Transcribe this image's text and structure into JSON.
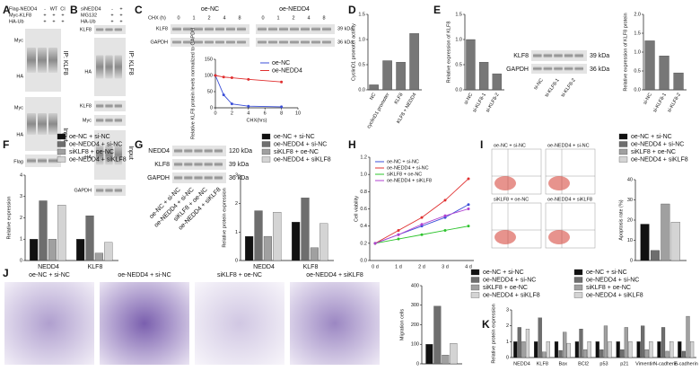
{
  "figure": {
    "A": {
      "letter": "A",
      "conditions": [
        [
          "Flag-NEDD4",
          "-",
          "WT",
          "CI"
        ],
        [
          "Myc-KLF8",
          "+",
          "+",
          "+"
        ],
        [
          "HA-Ub",
          "+",
          "+",
          "+"
        ]
      ],
      "blots": [
        "Myc",
        "HA",
        "Myc",
        "HA",
        "Flag"
      ],
      "sections": [
        "IP: KLF8",
        "Input"
      ]
    },
    "B": {
      "letter": "B",
      "conditions": [
        [
          "siNEDD4",
          "-",
          "+"
        ],
        [
          "MG132",
          "+",
          "+"
        ],
        [
          "HA-Ub",
          "+",
          "+"
        ]
      ],
      "blots": [
        "KLF8",
        "HA",
        "KLF8",
        "Myc",
        "HA",
        "GAPDH"
      ],
      "sections": [
        "IP: KLF8",
        "Input"
      ]
    },
    "C": {
      "letter": "C",
      "groups": [
        "oe-NC",
        "oe-NEDD4"
      ],
      "chx_label": "CHX (h)",
      "chx_times": [
        "0",
        "1",
        "2",
        "4",
        "8",
        "0",
        "1",
        "2",
        "4",
        "8"
      ],
      "blots": [
        "KLF8",
        "GAPDH"
      ],
      "sizes": [
        "39 kDa",
        "36 kDa"
      ]
    },
    "D": {
      "letter": "D"
    },
    "E": {
      "letter": "E",
      "blots": [
        "KLF8",
        "GAPDH"
      ],
      "sizes": [
        "39 kDa",
        "36 kDa"
      ],
      "lanes": [
        "si-NC",
        "si-KLF8-1",
        "si-KLF8-2"
      ]
    },
    "F": {
      "letter": "F"
    },
    "G": {
      "letter": "G",
      "blots": [
        "NEDD4",
        "KLF8",
        "GAPDH"
      ],
      "sizes": [
        "120 kDa",
        "39 kDa",
        "36 kDa"
      ],
      "lanes": [
        "oe-NC + si-NC",
        "oe-NEDD4 + si-NC",
        "siKLF8 + oe-NC",
        "oe-NEDD4 + siKLF8"
      ]
    },
    "H": {
      "letter": "H"
    },
    "I": {
      "letter": "I",
      "plots": [
        "oe-NC + si-NC",
        "oe-NEDD4 + si-NC",
        "siKLF8 + oe-NC",
        "oe-NEDD4 + siKLF8"
      ]
    },
    "J": {
      "letter": "J",
      "images": [
        "oe-NC + si-NC",
        "oe-NEDD4 + si-NC",
        "siKLF8 + oe-NC",
        "oe-NEDD4 + siKLF8"
      ]
    },
    "K": {
      "letter": "K"
    }
  },
  "chart_data": [
    {
      "type": "line",
      "ylabel": "Relative KLF8 protein levels normalized to GAPDH",
      "xlabel": "CHX(hrs)",
      "x": [
        0,
        1,
        2,
        4,
        8
      ],
      "xlim": [
        0,
        10
      ],
      "xticks": [
        0,
        2,
        4,
        6,
        8,
        10
      ],
      "ylim": [
        0,
        150
      ],
      "yticks": [
        0,
        50,
        100,
        150
      ],
      "series": [
        {
          "name": "oe-NC",
          "color": "#3b4fd8",
          "values": [
            100,
            40,
            12,
            5,
            3
          ]
        },
        {
          "name": "oe-NEDD4",
          "color": "#e03030",
          "values": [
            100,
            95,
            93,
            88,
            80
          ]
        }
      ]
    },
    {
      "type": "bar",
      "ylabel": "CyclinD1 promoter activity",
      "categories": [
        "NC",
        "cyclinD1 promoter",
        "KLF8",
        "KLF8 + NEDD4"
      ],
      "values": [
        0.1,
        0.58,
        0.55,
        1.12
      ],
      "color": "#777777",
      "ylim": [
        0,
        1.5
      ],
      "yticks": [
        {
          "value": 0,
          "label": "0.0"
        },
        0.5,
        {
          "value": 1,
          "label": "1.0"
        },
        1.5
      ]
    },
    {
      "type": "bar",
      "ylabel": "Relative expression of KLF8",
      "categories": [
        "si-NC",
        "si-KLF8-1",
        "si-KLF8-2"
      ],
      "values": [
        1.0,
        0.55,
        0.32
      ],
      "color": "#777777",
      "ylim": [
        0,
        1.5
      ],
      "yticks": [
        {
          "value": 0,
          "label": "0.0"
        },
        0.5,
        {
          "value": 1,
          "label": "1.0"
        },
        1.5
      ]
    },
    {
      "type": "bar",
      "ylabel": "Relative expression of KLF8 protein",
      "categories": [
        "si-NC",
        "si-KLF8-1",
        "si-KLF8-2"
      ],
      "values": [
        1.3,
        0.9,
        0.45
      ],
      "color": "#777777",
      "ylim": [
        0,
        2
      ],
      "yticks": [
        {
          "value": 0,
          "label": "0.0"
        },
        0.5,
        {
          "value": 1,
          "label": "1.0"
        },
        1.5,
        {
          "value": 2,
          "label": "2.0"
        }
      ]
    },
    {
      "type": "bar",
      "ylabel": "Relative expression",
      "categories": [
        "NEDD4",
        "KLF8"
      ],
      "ylim": [
        0,
        4
      ],
      "yticks": [
        0,
        1,
        2,
        3,
        4
      ],
      "series": [
        {
          "name": "oe-NC + si-NC",
          "color": "#111111",
          "values": [
            1.0,
            1.0
          ]
        },
        {
          "name": "oe-NEDD4 + si-NC",
          "color": "#6e6e6e",
          "values": [
            2.8,
            2.1
          ]
        },
        {
          "name": "siKLF8 + oe-NC",
          "color": "#a0a0a0",
          "values": [
            1.0,
            0.35
          ]
        },
        {
          "name": "oe-NEDD4 + siKLF8",
          "color": "#d4d4d4",
          "values": [
            2.6,
            0.85
          ]
        }
      ]
    },
    {
      "type": "bar",
      "ylabel": "Relative protein expression",
      "categories": [
        "NEDD4",
        "KLF8"
      ],
      "ylim": [
        0,
        3
      ],
      "yticks": [
        0,
        1,
        2,
        3
      ],
      "series": [
        {
          "name": "oe-NC + si-NC",
          "color": "#111111",
          "values": [
            0.85,
            1.35
          ]
        },
        {
          "name": "oe-NEDD4 + si-NC",
          "color": "#6e6e6e",
          "values": [
            1.75,
            2.2
          ]
        },
        {
          "name": "siKLF8 + oe-NC",
          "color": "#a0a0a0",
          "values": [
            0.85,
            0.45
          ]
        },
        {
          "name": "oe-NEDD4 + siKLF8",
          "color": "#d4d4d4",
          "values": [
            1.7,
            1.3
          ]
        }
      ]
    },
    {
      "type": "line",
      "ylabel": "Cell viability",
      "categories": [
        "0 d",
        "1 d",
        "2 d",
        "3 d",
        "4 d"
      ],
      "ylim": [
        0,
        1.2
      ],
      "yticks": [
        {
          "value": 0,
          "label": "0.0"
        },
        0.2,
        0.4,
        0.6,
        0.8,
        {
          "value": 1,
          "label": "1.0"
        },
        1.2
      ],
      "series": [
        {
          "name": "oe-NC + si-NC",
          "color": "#3b4fd8",
          "values": [
            0.2,
            0.3,
            0.4,
            0.5,
            0.65
          ]
        },
        {
          "name": "oe-NEDD4 + si-NC",
          "color": "#e03030",
          "values": [
            0.2,
            0.35,
            0.5,
            0.7,
            0.95
          ]
        },
        {
          "name": "siKLF8 + oe-NC",
          "color": "#2ec42e",
          "values": [
            0.2,
            0.25,
            0.3,
            0.35,
            0.4
          ]
        },
        {
          "name": "oe-NEDD4 + siKLF8",
          "color": "#b040d0",
          "values": [
            0.2,
            0.3,
            0.42,
            0.52,
            0.6
          ]
        }
      ]
    },
    {
      "type": "bar",
      "ylabel": "Apoptosis rate (%)",
      "ylim": [
        0,
        40
      ],
      "yticks": [
        0,
        10,
        20,
        30,
        40
      ],
      "series": [
        {
          "name": "oe-NC + si-NC",
          "color": "#111111",
          "values": [
            18
          ]
        },
        {
          "name": "oe-NEDD4 + si-NC",
          "color": "#6e6e6e",
          "values": [
            5
          ]
        },
        {
          "name": "siKLF8 + oe-NC",
          "color": "#a0a0a0",
          "values": [
            28
          ]
        },
        {
          "name": "oe-NEDD4 + siKLF8",
          "color": "#d4d4d4",
          "values": [
            19
          ]
        }
      ]
    },
    {
      "type": "bar",
      "ylabel": "Migration cells",
      "ylim": [
        0,
        400
      ],
      "yticks": [
        0,
        100,
        200,
        300,
        400
      ],
      "series": [
        {
          "name": "oe-NC + si-NC",
          "color": "#111111",
          "values": [
            100
          ]
        },
        {
          "name": "oe-NEDD4 + si-NC",
          "color": "#6e6e6e",
          "values": [
            295
          ]
        },
        {
          "name": "siKLF8 + oe-NC",
          "color": "#a0a0a0",
          "values": [
            45
          ]
        },
        {
          "name": "oe-NEDD4 + siKLF8",
          "color": "#d4d4d4",
          "values": [
            105
          ]
        }
      ]
    },
    {
      "type": "bar",
      "ylabel": "Relative protein expression",
      "categories": [
        "NEDD4",
        "KLF8",
        "Bax",
        "BCl2",
        "p53",
        "p21",
        "Vimentin",
        "N-cadherin",
        "E-cadherin"
      ],
      "ylim": [
        0,
        3
      ],
      "yticks": [
        0,
        1,
        2,
        3
      ],
      "series": [
        {
          "name": "oe-NC + si-NC",
          "color": "#111111",
          "values": [
            1,
            1,
            1,
            1,
            1,
            1,
            1,
            1,
            1
          ]
        },
        {
          "name": "oe-NEDD4 + si-NC",
          "color": "#6e6e6e",
          "values": [
            1.9,
            2.5,
            0.45,
            1.8,
            0.5,
            0.5,
            2.0,
            1.9,
            0.4
          ]
        },
        {
          "name": "siKLF8 + oe-NC",
          "color": "#a0a0a0",
          "values": [
            1.0,
            0.35,
            1.6,
            0.5,
            2.0,
            1.9,
            0.5,
            0.4,
            2.6
          ]
        },
        {
          "name": "oe-NEDD4 + siKLF8",
          "color": "#d4d4d4",
          "values": [
            1.8,
            1.0,
            0.9,
            1.0,
            1.0,
            1.0,
            1.0,
            1.0,
            1.0
          ]
        }
      ]
    }
  ]
}
